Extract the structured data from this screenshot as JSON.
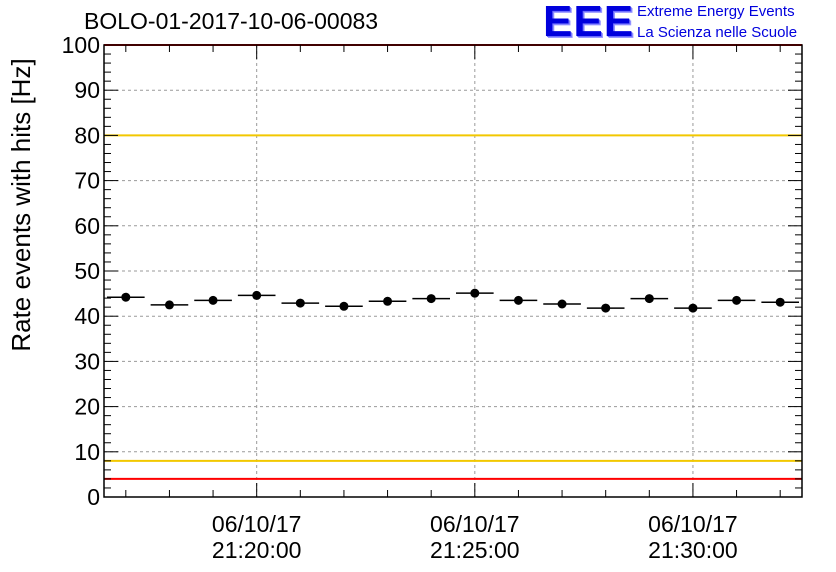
{
  "chart_data": {
    "type": "scatter",
    "title": "BOLO-01-2017-10-06-00083",
    "ylabel": "Rate events with hits [Hz]",
    "xlabel": "",
    "ylim": [
      0,
      100
    ],
    "yticks": [
      0,
      10,
      20,
      30,
      40,
      50,
      60,
      70,
      80,
      90,
      100
    ],
    "xlim": [
      "21:16:30",
      "21:32:30"
    ],
    "xticks": [
      {
        "date": "06/10/17",
        "time": "21:20:00"
      },
      {
        "date": "06/10/17",
        "time": "21:25:00"
      },
      {
        "date": "06/10/17",
        "time": "21:30:00"
      }
    ],
    "grid": true,
    "bin_width_seconds": 60,
    "series": [
      {
        "x": [
          "21:17:00",
          "21:18:00",
          "21:19:00",
          "21:20:00",
          "21:21:00",
          "21:22:00",
          "21:23:00",
          "21:24:00",
          "21:25:00",
          "21:26:00",
          "21:27:00",
          "21:28:00",
          "21:29:00",
          "21:30:00",
          "21:31:00",
          "21:32:00"
        ],
        "values": [
          44.2,
          42.5,
          43.5,
          44.6,
          42.9,
          42.2,
          43.3,
          43.9,
          45.1,
          43.5,
          42.7,
          41.8,
          43.9,
          41.8,
          43.5,
          43.1
        ],
        "color": "#000000"
      }
    ],
    "reference_lines": [
      {
        "y": 100,
        "color": "#ff0000"
      },
      {
        "y": 80,
        "color": "#f2c800"
      },
      {
        "y": 8,
        "color": "#f2c800"
      },
      {
        "y": 4,
        "color": "#ff0000"
      }
    ]
  },
  "logo": {
    "mark": "EEE",
    "line1": "Extreme Energy Events",
    "line2": "La Scienza nelle Scuole"
  }
}
